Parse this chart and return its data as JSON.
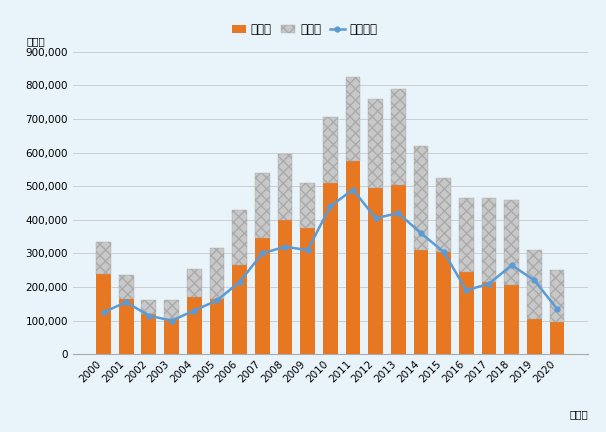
{
  "years": [
    2000,
    2001,
    2002,
    2003,
    2004,
    2005,
    2006,
    2007,
    2008,
    2009,
    2010,
    2011,
    2012,
    2013,
    2014,
    2015,
    2016,
    2017,
    2018,
    2019,
    2020
  ],
  "passenger": [
    240000,
    165000,
    120000,
    105000,
    170000,
    165000,
    265000,
    345000,
    400000,
    375000,
    510000,
    575000,
    495000,
    505000,
    310000,
    305000,
    245000,
    215000,
    205000,
    105000,
    95000
  ],
  "commercial": [
    95000,
    70000,
    40000,
    55000,
    85000,
    150000,
    165000,
    195000,
    195000,
    135000,
    195000,
    250000,
    265000,
    285000,
    310000,
    220000,
    220000,
    250000,
    255000,
    205000,
    155000
  ],
  "export": [
    125000,
    155000,
    115000,
    100000,
    130000,
    160000,
    215000,
    300000,
    320000,
    310000,
    440000,
    490000,
    405000,
    420000,
    360000,
    305000,
    190000,
    210000,
    265000,
    220000,
    135000
  ],
  "bar_color_passenger": "#E87722",
  "bar_color_commercial": "#C8C8C8",
  "line_color": "#5B9BD5",
  "background_color": "#E8F4FA",
  "grid_color": "#C8C8C8",
  "ylabel": "（台）",
  "xlabel": "（年）",
  "legend_passenger": "乗用車",
  "legend_commercial": "商用車",
  "legend_export": "輸出台数",
  "ylim": [
    0,
    900000
  ],
  "yticks": [
    0,
    100000,
    200000,
    300000,
    400000,
    500000,
    600000,
    700000,
    800000,
    900000
  ],
  "tick_fontsize": 7.5,
  "legend_fontsize": 8.5
}
